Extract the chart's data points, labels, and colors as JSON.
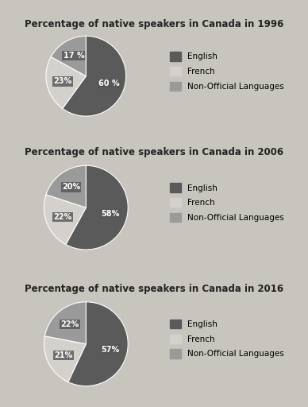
{
  "charts": [
    {
      "title": "Percentage of native speakers in Canada in 1996",
      "values": [
        60,
        23,
        17
      ],
      "labels": [
        "60 %",
        "23%",
        "17 %"
      ],
      "colors": [
        "#5a5a5a",
        "#d4d0cc",
        "#9a9a9a"
      ],
      "legend_labels": [
        "English",
        "French",
        "Non-Official Languages"
      ],
      "startangle": 90
    },
    {
      "title": "Percentage of native speakers in Canada in 2006",
      "values": [
        58,
        22,
        20
      ],
      "labels": [
        "58%",
        "22%",
        "20%"
      ],
      "colors": [
        "#5a5a5a",
        "#d4d0cc",
        "#9a9a9a"
      ],
      "legend_labels": [
        "English",
        "French",
        "Non-Official Languages"
      ],
      "startangle": 90
    },
    {
      "title": "Percentage of native speakers in Canada in 2016",
      "values": [
        57,
        21,
        22
      ],
      "labels": [
        "57%",
        "21%",
        "22%"
      ],
      "colors": [
        "#5a5a5a",
        "#d4d0cc",
        "#9a9a9a"
      ],
      "legend_labels": [
        "English",
        "French",
        "Non-Official Languages"
      ],
      "startangle": 90
    }
  ],
  "outer_bg": "#c8c5bf",
  "panel_bg": "#e8e6e2",
  "label_fontsize": 7,
  "title_fontsize": 8.5,
  "legend_fontsize": 7.5,
  "label_box_color": "#555555",
  "label_text_color": "white"
}
